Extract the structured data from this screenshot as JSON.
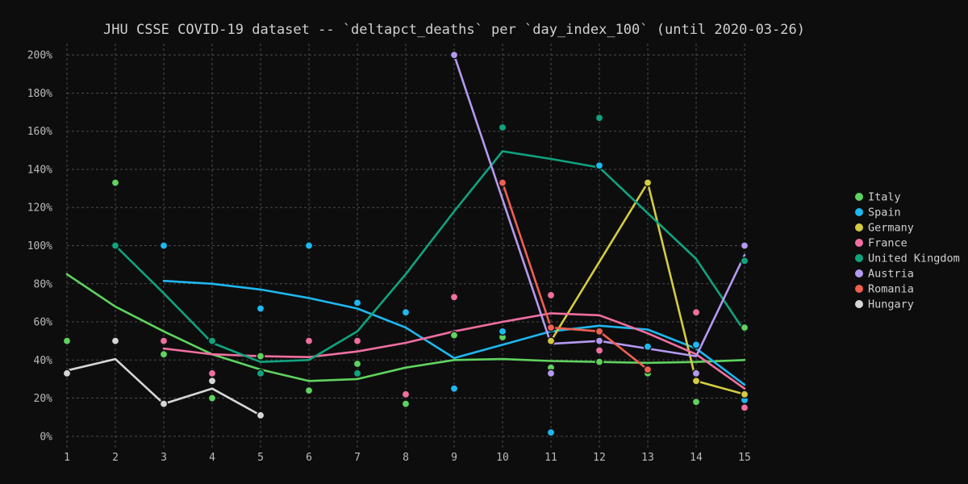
{
  "chart_data": {
    "type": "line",
    "title": "JHU CSSE COVID-19 dataset -- `deltapct_deaths` per `day_index_100` (until 2020-03-26)",
    "xlabel": "",
    "ylabel": "",
    "x": [
      1,
      2,
      3,
      4,
      5,
      6,
      7,
      8,
      9,
      10,
      11,
      12,
      13,
      14,
      15
    ],
    "x_tick_labels": [
      "1",
      "2",
      "3",
      "4",
      "5",
      "6",
      "7",
      "8",
      "9",
      "10",
      "11",
      "12",
      "13",
      "14",
      "15"
    ],
    "ylim": [
      -6,
      206
    ],
    "y_ticks": [
      0,
      20,
      40,
      60,
      80,
      100,
      120,
      140,
      160,
      180,
      200
    ],
    "y_tick_labels": [
      "0%",
      "20%",
      "40%",
      "60%",
      "80%",
      "100%",
      "120%",
      "140%",
      "160%",
      "180%",
      "200%"
    ],
    "grid": true,
    "legend_position": "right",
    "series": [
      {
        "name": "Italy",
        "color": "#5fd35f",
        "points": [
          [
            1,
            50
          ],
          [
            2,
            133
          ],
          [
            3,
            43
          ],
          [
            4,
            20
          ],
          [
            5,
            42
          ],
          [
            6,
            24
          ],
          [
            7,
            38
          ],
          [
            8,
            17
          ],
          [
            9,
            53
          ],
          [
            10,
            52
          ],
          [
            11,
            36
          ],
          [
            12,
            39
          ],
          [
            13,
            33
          ],
          [
            14,
            18
          ],
          [
            15,
            57
          ]
        ],
        "line": [
          [
            1,
            85
          ],
          [
            2,
            68
          ],
          [
            3,
            55
          ],
          [
            4,
            43
          ],
          [
            5,
            35
          ],
          [
            6,
            29
          ],
          [
            7,
            30
          ],
          [
            8,
            36
          ],
          [
            9,
            40
          ],
          [
            10,
            40.5
          ],
          [
            11,
            39.5
          ],
          [
            12,
            39
          ],
          [
            13,
            38.5
          ],
          [
            14,
            39
          ],
          [
            15,
            40
          ]
        ]
      },
      {
        "name": "Spain",
        "color": "#1eb8f0",
        "points": [
          [
            3,
            100
          ],
          [
            4,
            50
          ],
          [
            5,
            67
          ],
          [
            6,
            100
          ],
          [
            7,
            70
          ],
          [
            8,
            65
          ],
          [
            9,
            25
          ],
          [
            10,
            55
          ],
          [
            11,
            2
          ],
          [
            12,
            142
          ],
          [
            13,
            47
          ],
          [
            14,
            48
          ],
          [
            15,
            19
          ]
        ],
        "line": [
          [
            3,
            81.5
          ],
          [
            4,
            80
          ],
          [
            5,
            77
          ],
          [
            6,
            72.5
          ],
          [
            7,
            67
          ],
          [
            8,
            57
          ],
          [
            9,
            41
          ],
          [
            10,
            48
          ],
          [
            11,
            55
          ],
          [
            12,
            58
          ],
          [
            13,
            56
          ],
          [
            14,
            46
          ],
          [
            15,
            27
          ]
        ]
      },
      {
        "name": "Germany",
        "color": "#d4cc40",
        "points": [
          [
            11,
            50
          ],
          [
            13,
            133
          ],
          [
            14,
            29
          ],
          [
            15,
            22
          ]
        ],
        "line": [
          [
            11,
            50
          ],
          [
            13,
            133
          ],
          [
            14,
            29
          ],
          [
            15,
            22
          ]
        ]
      },
      {
        "name": "France",
        "color": "#f06fa0",
        "points": [
          [
            3,
            50
          ],
          [
            4,
            33
          ],
          [
            6,
            50
          ],
          [
            7,
            50
          ],
          [
            8,
            22
          ],
          [
            9,
            73
          ],
          [
            11,
            74
          ],
          [
            12,
            45
          ],
          [
            14,
            65
          ],
          [
            15,
            15
          ]
        ],
        "line": [
          [
            3,
            46
          ],
          [
            4,
            43
          ],
          [
            5,
            42
          ],
          [
            6,
            41.5
          ],
          [
            7,
            44.5
          ],
          [
            8,
            49
          ],
          [
            9,
            55
          ],
          [
            10,
            60
          ],
          [
            11,
            64.5
          ],
          [
            12,
            63.5
          ],
          [
            13,
            54
          ],
          [
            14,
            43
          ],
          [
            15,
            25
          ]
        ]
      },
      {
        "name": "United Kingdom",
        "color": "#10a37f",
        "points": [
          [
            2,
            100
          ],
          [
            4,
            50
          ],
          [
            5,
            33
          ],
          [
            7,
            33
          ],
          [
            10,
            162
          ],
          [
            12,
            167
          ],
          [
            15,
            92
          ]
        ],
        "line": [
          [
            2,
            100
          ],
          [
            3,
            75
          ],
          [
            4,
            49
          ],
          [
            5,
            39
          ],
          [
            6,
            40
          ],
          [
            7,
            55
          ],
          [
            8,
            85
          ],
          [
            9,
            118
          ],
          [
            10,
            149.5
          ],
          [
            11,
            145.5
          ],
          [
            12,
            141
          ],
          [
            13,
            117
          ],
          [
            14,
            93
          ],
          [
            15,
            55
          ]
        ]
      },
      {
        "name": "Austria",
        "color": "#b39af0",
        "points": [
          [
            9,
            200
          ],
          [
            11,
            33
          ],
          [
            12,
            50
          ],
          [
            14,
            33
          ],
          [
            15,
            100
          ]
        ],
        "line": [
          [
            9,
            200
          ],
          [
            11,
            48.5
          ],
          [
            12,
            50
          ],
          [
            13,
            46
          ],
          [
            14,
            42
          ],
          [
            15,
            95
          ]
        ]
      },
      {
        "name": "Romania",
        "color": "#f06050",
        "points": [
          [
            10,
            133
          ],
          [
            11,
            57
          ],
          [
            12,
            55
          ],
          [
            13,
            35
          ]
        ],
        "line": [
          [
            10,
            133
          ],
          [
            11,
            57
          ],
          [
            12,
            55
          ],
          [
            13,
            35
          ]
        ]
      },
      {
        "name": "Hungary",
        "color": "#d6d6d6",
        "points": [
          [
            1,
            33
          ],
          [
            2,
            50
          ],
          [
            3,
            17
          ],
          [
            4,
            29
          ],
          [
            5,
            11
          ]
        ],
        "line": [
          [
            1,
            34.5
          ],
          [
            2,
            40.5
          ],
          [
            3,
            17
          ],
          [
            4,
            25
          ],
          [
            5,
            11
          ]
        ]
      }
    ]
  }
}
